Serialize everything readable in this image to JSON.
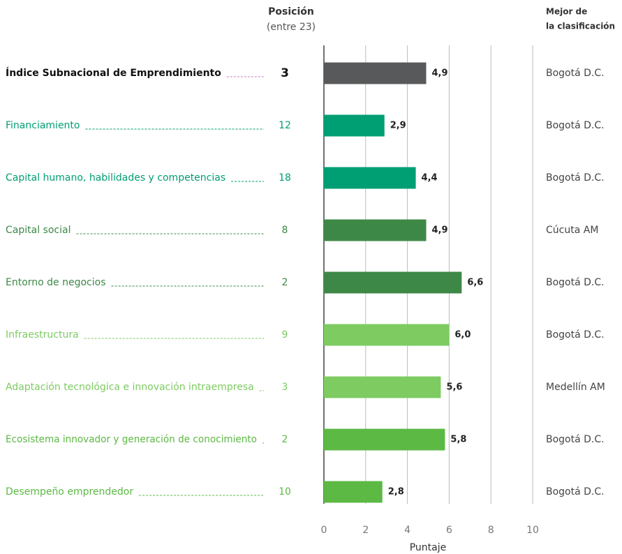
{
  "chart_data": {
    "type": "bar",
    "orientation": "horizontal",
    "rank_header": "Posición",
    "rank_subheader": "(entre 23)",
    "best_header": [
      "Mejor de",
      "la clasificación"
    ],
    "x_label": "Puntaje",
    "categories": [
      "Índice Subnacional de Emprendimiento",
      "Financiamiento",
      "Capital humano, habilidades y competencias",
      "Capital social",
      "Entorno de negocios",
      "Infraestructura",
      "Adaptación tecnológica e innovación intraempresa",
      "Ecosistema innovador y generación de conocimiento",
      "Desempeño emprendedor"
    ],
    "values": [
      4.9,
      2.9,
      4.4,
      4.9,
      6.6,
      6.0,
      5.6,
      5.8,
      2.8
    ],
    "value_labels": [
      "4,9",
      "2,9",
      "4,4",
      "4,9",
      "6,6",
      "6,0",
      "5,6",
      "5,8",
      "2,8"
    ],
    "colors": [
      "#58595b",
      "#009e73",
      "#009e73",
      "#3e8847",
      "#3e8847",
      "#7dcb61",
      "#7dcb61",
      "#5cb944",
      "#5cb944"
    ],
    "label_colors": [
      "#111111",
      "#009e73",
      "#009e73",
      "#3e8847",
      "#3e8847",
      "#7dcb61",
      "#7dcb61",
      "#5cb944",
      "#5cb944"
    ],
    "ranks": [
      3,
      12,
      18,
      8,
      2,
      9,
      3,
      2,
      10
    ],
    "best": [
      "Bogotá D.C.",
      "Bogotá D.C.",
      "Bogotá D.C.",
      "Cúcuta AM",
      "Bogotá D.C.",
      "Bogotá D.C.",
      "Medellín AM",
      "Bogotá D.C.",
      "Bogotá D.C."
    ],
    "xlim": [
      0,
      10
    ],
    "xticks": [
      0,
      2,
      4,
      6,
      8,
      10
    ],
    "grid": true
  }
}
